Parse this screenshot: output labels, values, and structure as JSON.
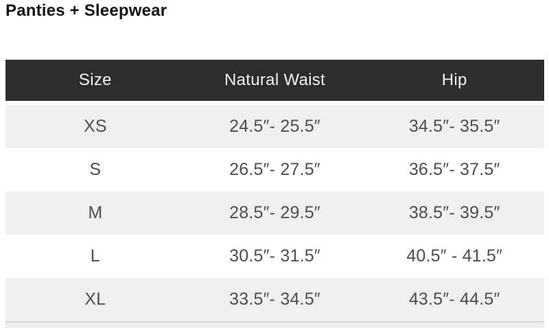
{
  "page": {
    "title": "Panties + Sleepwear"
  },
  "colors": {
    "header_bg": "#2d2d2d",
    "header_text": "#f2f2f2",
    "row_alt_bg": "#efefef",
    "row_bg": "#ffffff",
    "body_text": "#4d4d4d",
    "title_text": "#141414",
    "divider": "#d5d5d5"
  },
  "table": {
    "columns": [
      "Size",
      "Natural Waist",
      "Hip"
    ],
    "rows": [
      {
        "size": "XS",
        "natural_waist": "24.5″- 25.5″",
        "hip": "34.5″- 35.5″"
      },
      {
        "size": "S",
        "natural_waist": "26.5″- 27.5″",
        "hip": "36.5″- 37.5″"
      },
      {
        "size": "M",
        "natural_waist": "28.5″- 29.5″",
        "hip": "38.5″- 39.5″"
      },
      {
        "size": "L",
        "natural_waist": "30.5″- 31.5″",
        "hip": "40.5″ - 41.5″"
      },
      {
        "size": "XL",
        "natural_waist": "33.5″- 34.5″",
        "hip": "43.5″- 44.5″"
      }
    ]
  },
  "chart_data": {
    "type": "table",
    "title": "Panties + Sleepwear",
    "columns": [
      "Size",
      "Natural Waist",
      "Hip"
    ],
    "rows": [
      [
        "XS",
        "24.5″- 25.5″",
        "34.5″- 35.5″"
      ],
      [
        "S",
        "26.5″- 27.5″",
        "36.5″- 37.5″"
      ],
      [
        "M",
        "28.5″- 29.5″",
        "38.5″- 39.5″"
      ],
      [
        "L",
        "30.5″- 31.5″",
        "40.5″ - 41.5″"
      ],
      [
        "XL",
        "33.5″- 34.5″",
        "43.5″- 44.5″"
      ]
    ],
    "layout_hints": {
      "header_style": "dark-bar",
      "row_striping": "odd-rows-gray",
      "text_alignment": "center"
    }
  }
}
